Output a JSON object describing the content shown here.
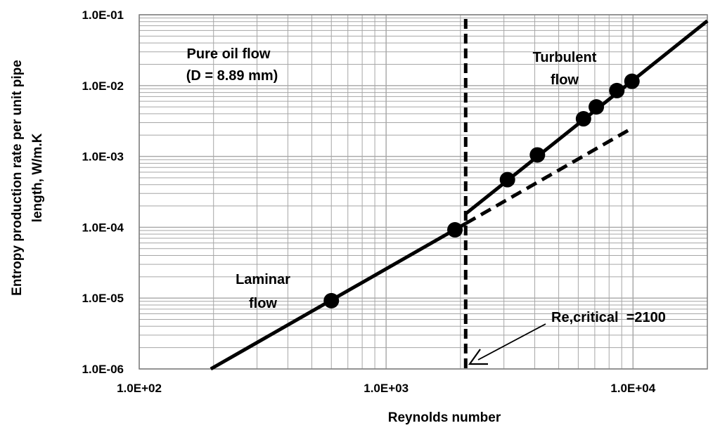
{
  "chart_data": {
    "type": "line",
    "x_scale": "log",
    "y_scale": "log",
    "xlim": [
      100,
      20000
    ],
    "ylim": [
      1e-06,
      0.1
    ],
    "grid": true,
    "xlabel": "Reynolds number",
    "ylabel_lines": [
      "Entropy production rate per unit pipe",
      "length, W/m.K"
    ],
    "x_ticks": [
      {
        "value": 100,
        "label": "1.0E+02"
      },
      {
        "value": 1000,
        "label": "1.0E+03"
      },
      {
        "value": 10000,
        "label": "1.0E+04"
      }
    ],
    "y_ticks": [
      {
        "value": 0.1,
        "label": "1.0E-01"
      },
      {
        "value": 0.01,
        "label": "1.0E-02"
      },
      {
        "value": 0.001,
        "label": "1.0E-03"
      },
      {
        "value": 0.0001,
        "label": "1.0E-04"
      },
      {
        "value": 1e-05,
        "label": "1.0E-05"
      },
      {
        "value": 1e-06,
        "label": "1.0E-06"
      }
    ],
    "series": [
      {
        "role": "laminar-line",
        "style": "solid",
        "x": [
          195,
          2100
        ],
        "y": [
          1e-06,
          0.000113
        ]
      },
      {
        "role": "laminar-extension",
        "style": "dashed",
        "x": [
          2100,
          10000
        ],
        "y": [
          0.000113,
          0.00255
        ]
      },
      {
        "role": "turbulent-line",
        "style": "solid",
        "x": [
          2100,
          20000
        ],
        "y": [
          0.000155,
          0.082
        ]
      },
      {
        "role": "data-points",
        "style": "markers",
        "x": [
          600,
          1900,
          3100,
          4100,
          6300,
          7100,
          8600,
          9900
        ],
        "y": [
          9.2e-06,
          9.2e-05,
          0.00047,
          0.00105,
          0.0034,
          0.005,
          0.0085,
          0.0115
        ]
      }
    ],
    "critical_re": 2100,
    "annotations": {
      "pure_oil_line1": "Pure oil flow",
      "pure_oil_line2": "(D = 8.89 mm)",
      "turbulent_line1": "Turbulent",
      "turbulent_line2": "flow",
      "laminar_line1": "Laminar",
      "laminar_line2": "flow",
      "critical_label": "Re,critical  =2100"
    }
  }
}
